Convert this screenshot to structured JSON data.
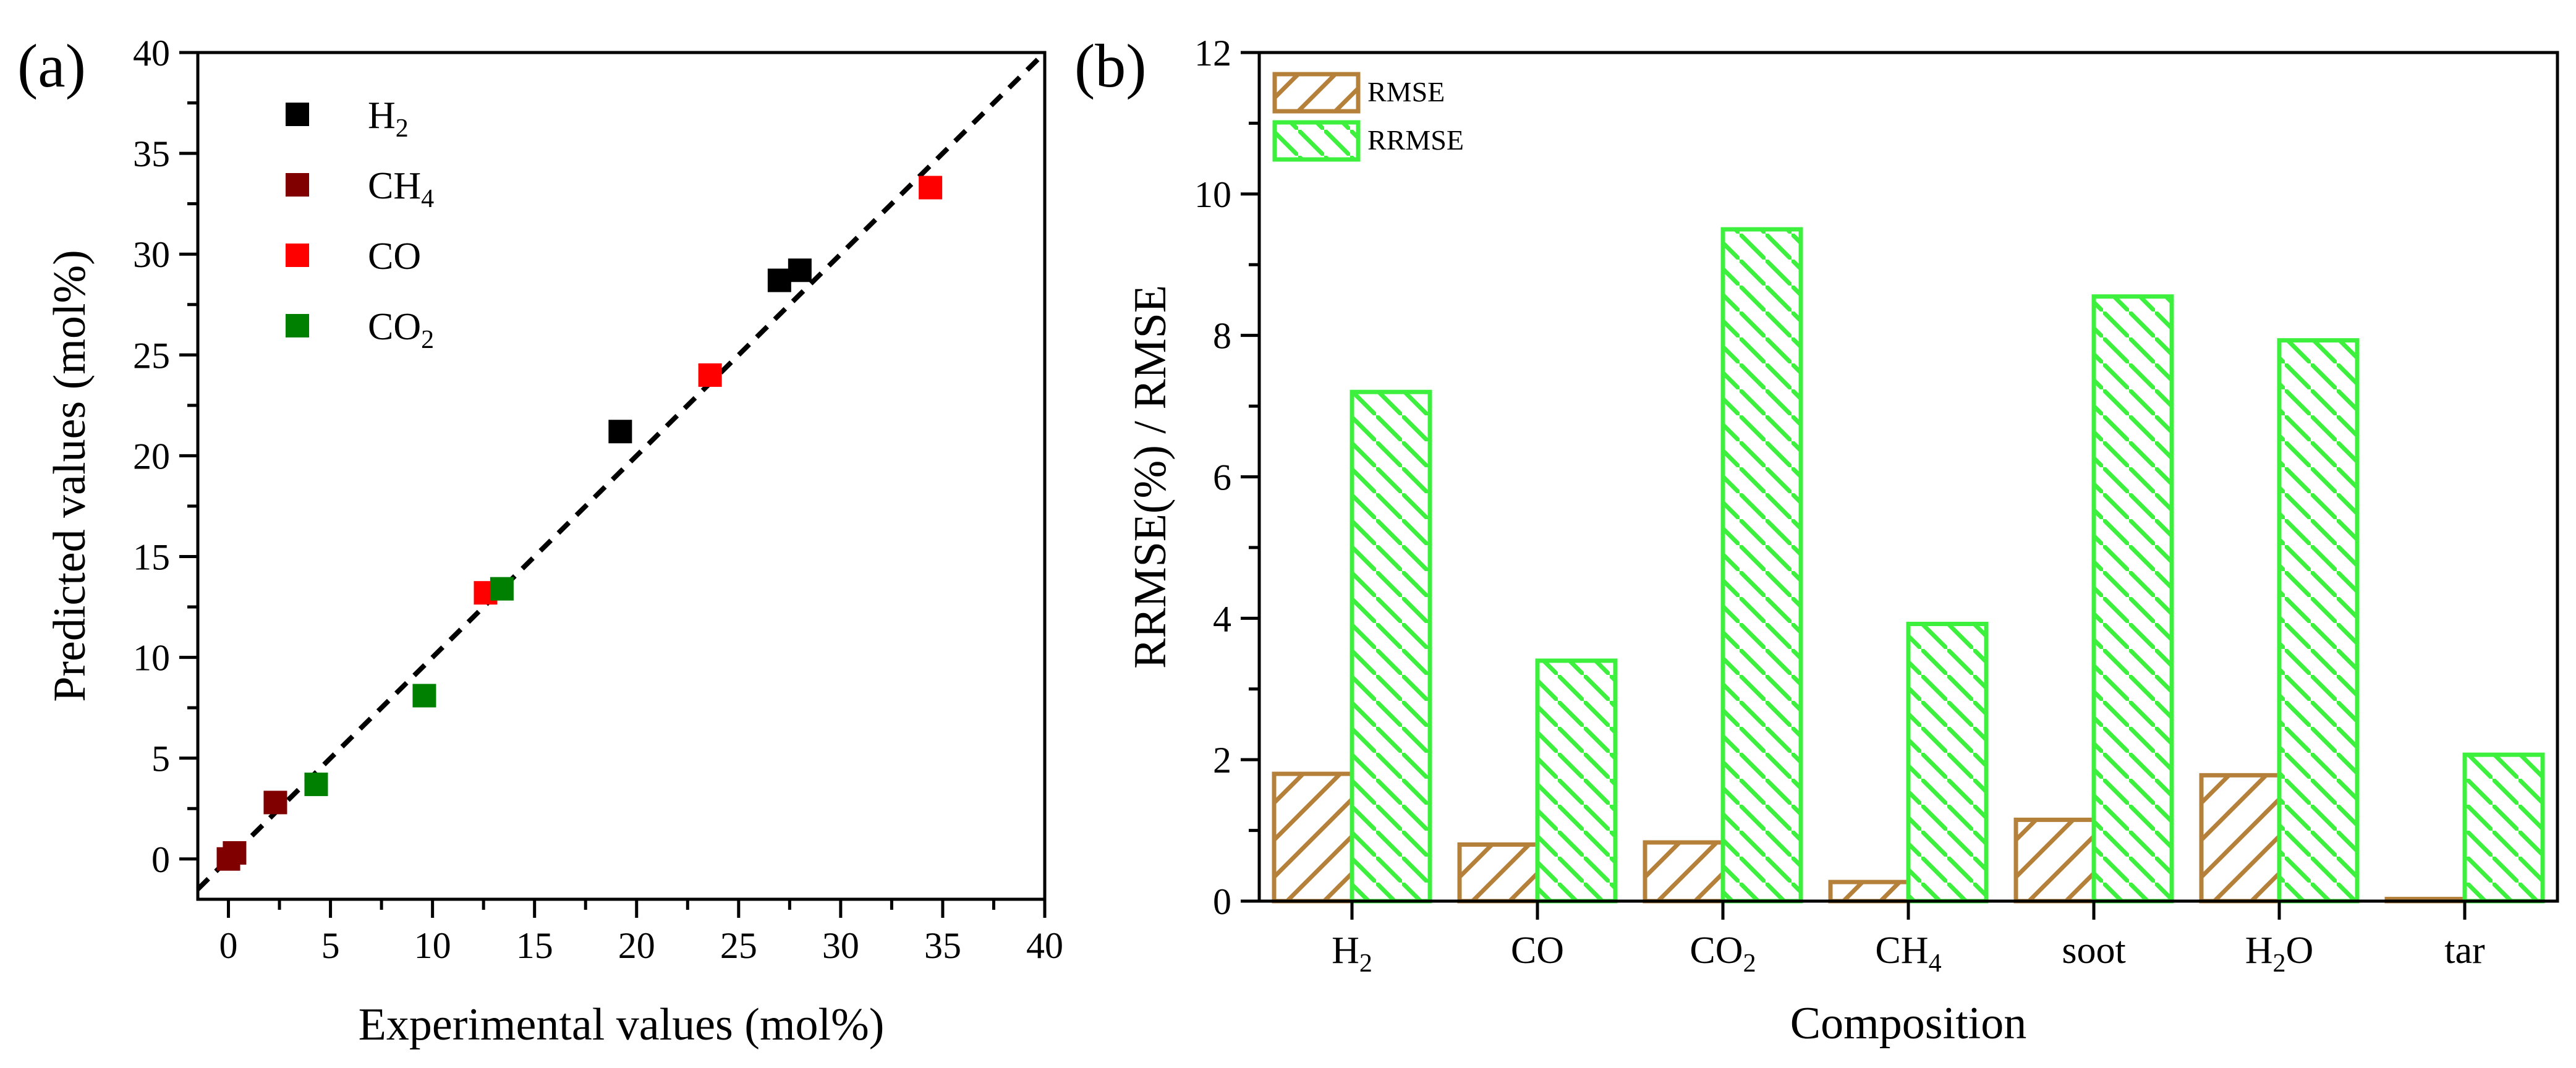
{
  "chart_data": [
    {
      "panel_label": "(a)",
      "type": "scatter",
      "xlabel": "Experimental values (mol%)",
      "ylabel": "Predicted values (mol%)",
      "xlim": [
        -1.5,
        40
      ],
      "ylim": [
        -2,
        40
      ],
      "xticks": [
        0,
        5,
        10,
        15,
        20,
        25,
        30,
        35,
        40
      ],
      "yticks": [
        0,
        5,
        10,
        15,
        20,
        25,
        30,
        35,
        40
      ],
      "legend_position": "top-left",
      "reference_line": "y = x (dashed)",
      "series": [
        {
          "name": "H",
          "sub": "2",
          "color": "#000000",
          "points": [
            [
              19.2,
              21.2
            ],
            [
              27.0,
              28.7
            ],
            [
              28.0,
              29.2
            ]
          ]
        },
        {
          "name": "CH",
          "sub": "4",
          "color": "#800000",
          "points": [
            [
              0.0,
              0.0
            ],
            [
              0.3,
              0.3
            ],
            [
              2.3,
              2.8
            ]
          ]
        },
        {
          "name": "CO",
          "sub": "",
          "color": "#ff0000",
          "points": [
            [
              12.6,
              13.2
            ],
            [
              23.6,
              24.0
            ],
            [
              34.4,
              33.3
            ]
          ]
        },
        {
          "name": "CO",
          "sub": "2",
          "color": "#008000",
          "points": [
            [
              4.3,
              3.7
            ],
            [
              9.6,
              8.1
            ],
            [
              13.4,
              13.4
            ]
          ]
        }
      ]
    },
    {
      "panel_label": "(b)",
      "type": "bar",
      "xlabel": "Composition",
      "ylabel": "RRMSE(%) / RMSE",
      "ylim": [
        0,
        12
      ],
      "yticks": [
        0,
        2,
        4,
        6,
        8,
        10,
        12
      ],
      "legend_position": "top-left",
      "categories": [
        {
          "label": "H",
          "sub": "2",
          "suffix": ""
        },
        {
          "label": "CO",
          "sub": "",
          "suffix": ""
        },
        {
          "label": "CO",
          "sub": "2",
          "suffix": ""
        },
        {
          "label": "CH",
          "sub": "4",
          "suffix": ""
        },
        {
          "label": "soot",
          "sub": "",
          "suffix": ""
        },
        {
          "label": "H",
          "sub": "2",
          "suffix": "O"
        },
        {
          "label": "tar",
          "sub": "",
          "suffix": ""
        }
      ],
      "series": [
        {
          "name": "RMSE",
          "color": "#b5813a",
          "values": [
            1.8,
            0.8,
            0.83,
            0.27,
            1.15,
            1.78,
            0.03
          ]
        },
        {
          "name": "RRMSE",
          "color": "#3df03d",
          "values": [
            7.2,
            3.4,
            9.5,
            3.92,
            8.55,
            7.93,
            2.07
          ]
        }
      ]
    }
  ]
}
